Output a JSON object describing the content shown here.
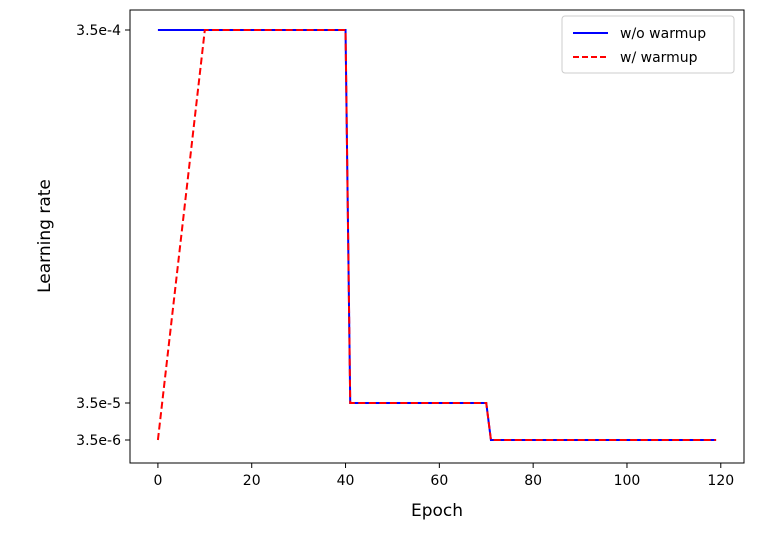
{
  "chart_data": {
    "type": "line",
    "xlabel": "Epoch",
    "ylabel": "Learning rate",
    "xlim": [
      -5.95,
      124.95
    ],
    "x_ticks": [
      0,
      20,
      40,
      60,
      80,
      100,
      120
    ],
    "x_tick_labels": [
      "0",
      "20",
      "40",
      "60",
      "80",
      "100",
      "120"
    ],
    "y_ticks": [
      0.00035,
      3.5e-05,
      3.5e-06
    ],
    "y_tick_labels": [
      "3.5e-4",
      "3.5e-5",
      "3.5e-6"
    ],
    "ylim": [
      0,
      0.000368
    ],
    "grid": false,
    "legend_position": "top-right",
    "series": [
      {
        "name": "w/o warmup",
        "color": "#0000ff",
        "style": "solid",
        "x": [
          0,
          40,
          41,
          70,
          71,
          119
        ],
        "y": [
          0.00035,
          0.00035,
          3.5e-05,
          3.5e-05,
          3.5e-06,
          3.5e-06
        ]
      },
      {
        "name": "w/ warmup",
        "color": "#ff0000",
        "style": "dashed",
        "x": [
          0,
          10,
          40,
          41,
          70,
          71,
          119
        ],
        "y": [
          3.5e-06,
          0.00035,
          0.00035,
          3.5e-05,
          3.5e-05,
          3.5e-06,
          3.5e-06
        ]
      }
    ]
  }
}
